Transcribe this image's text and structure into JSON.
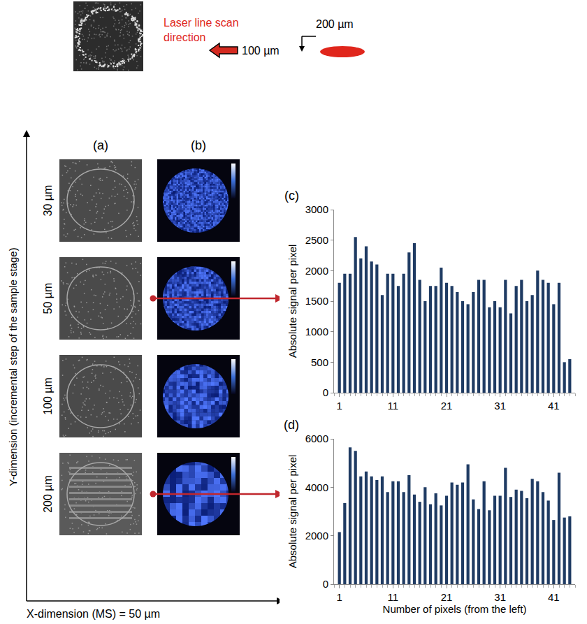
{
  "figure": {
    "scan_label": "Laser line scan direction",
    "step_x": "100 µm",
    "step_y": "200 µm",
    "column_labels": [
      "(a)",
      "(b)"
    ],
    "row_labels": [
      "30 µm",
      "50 µm",
      "100 µm",
      "200 µm"
    ],
    "y_dimension_label": "Y-dimension (incremental step of the sample stage)",
    "x_dimension_label": "X-dimension (MS) =  50  µm"
  },
  "chart_data": [
    {
      "panel": "(c)",
      "type": "bar",
      "x": [
        1,
        2,
        3,
        4,
        5,
        6,
        7,
        8,
        9,
        10,
        11,
        12,
        13,
        14,
        15,
        16,
        17,
        18,
        19,
        20,
        21,
        22,
        23,
        24,
        25,
        26,
        27,
        28,
        29,
        30,
        31,
        32,
        33,
        34,
        35,
        36,
        37,
        38,
        39,
        40,
        41,
        42,
        43,
        44
      ],
      "values": [
        1800,
        1950,
        1950,
        2550,
        2200,
        2400,
        2150,
        2100,
        1600,
        1950,
        1950,
        1750,
        1950,
        2300,
        2450,
        1850,
        1500,
        1750,
        1750,
        2050,
        1800,
        1750,
        1650,
        1500,
        1450,
        1650,
        1850,
        1850,
        1400,
        1500,
        1400,
        1850,
        1300,
        1750,
        1850,
        1500,
        1600,
        2000,
        1850,
        1800,
        1450,
        1800,
        500,
        550
      ],
      "ylabel": "Absolute signal per pixel",
      "color": "#1f3b63",
      "xlim": [
        0,
        45
      ],
      "xticks": [
        1,
        11,
        21,
        31,
        41
      ],
      "ylim": [
        0,
        3000
      ],
      "yticks": [
        0,
        500,
        1000,
        1500,
        2000,
        2500,
        3000
      ],
      "grid": false
    },
    {
      "panel": "(d)",
      "type": "bar",
      "x": [
        1,
        2,
        3,
        4,
        5,
        6,
        7,
        8,
        9,
        10,
        11,
        12,
        13,
        14,
        15,
        16,
        17,
        18,
        19,
        20,
        21,
        22,
        23,
        24,
        25,
        26,
        27,
        28,
        29,
        30,
        31,
        32,
        33,
        34,
        35,
        36,
        37,
        38,
        39,
        40,
        41,
        42,
        43,
        44
      ],
      "values": [
        2150,
        3350,
        5650,
        5500,
        4450,
        4650,
        4450,
        4300,
        4450,
        3800,
        4250,
        4250,
        3800,
        4500,
        3700,
        3400,
        4000,
        3300,
        3750,
        3250,
        3650,
        4200,
        4100,
        4200,
        4950,
        3500,
        3100,
        4250,
        3050,
        3650,
        3650,
        4800,
        3600,
        3900,
        3850,
        3550,
        4350,
        4250,
        3800,
        3450,
        2650,
        4600,
        2750,
        2800
      ],
      "xlabel": "Number of pixels (from the left)",
      "ylabel": "Absolute signal per pixel",
      "color": "#1f3b63",
      "xlim": [
        0,
        45
      ],
      "xticks": [
        1,
        11,
        21,
        31,
        41
      ],
      "ylim": [
        0,
        6000
      ],
      "yticks": [
        0,
        2000,
        4000,
        6000
      ],
      "grid": false
    }
  ]
}
